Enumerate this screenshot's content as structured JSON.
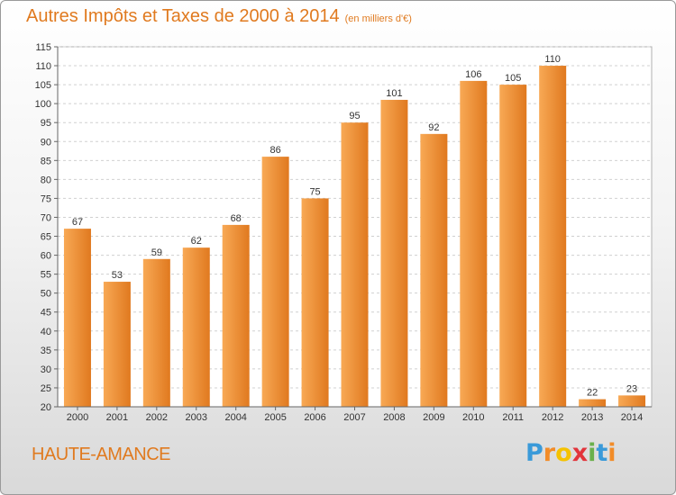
{
  "title": "Autres Impôts et Taxes de 2000 à 2014",
  "subtitle": "(en milliers d'€)",
  "commune": "HAUTE-AMANCE",
  "logo": {
    "letters": [
      "P",
      "r",
      "o",
      "x",
      "i",
      "t",
      "i"
    ],
    "colors": [
      "#3a9ad9",
      "#f28c28",
      "#f5c200",
      "#e2343b",
      "#6ab04c",
      "#3a9ad9",
      "#f28c28"
    ]
  },
  "colors": {
    "bar_light": "#f8a955",
    "bar_dark": "#e0791f",
    "title": "#e07a1f",
    "grid": "#d0d0d0"
  },
  "chart_data": {
    "type": "bar",
    "categories": [
      "2000",
      "2001",
      "2002",
      "2003",
      "2004",
      "2005",
      "2006",
      "2007",
      "2008",
      "2009",
      "2010",
      "2011",
      "2012",
      "2013",
      "2014"
    ],
    "values": [
      67,
      53,
      59,
      62,
      68,
      86,
      75,
      95,
      101,
      92,
      106,
      105,
      110,
      22,
      23
    ],
    "ylim": [
      20,
      115
    ],
    "ytick_step": 5,
    "grid": true
  }
}
